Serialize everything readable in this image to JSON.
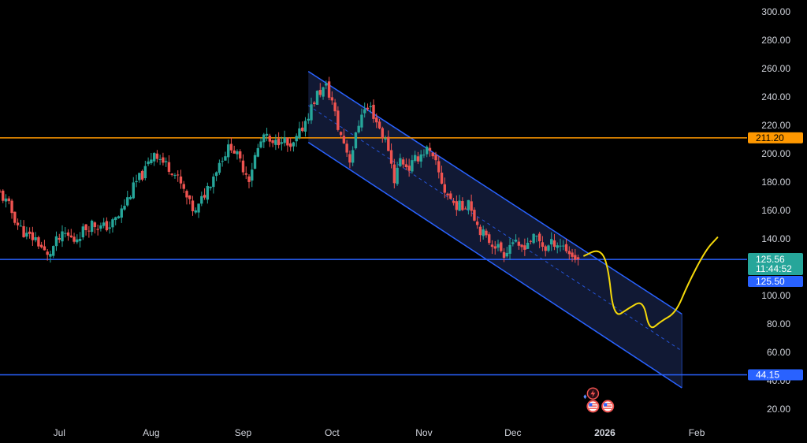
{
  "chart_data": {
    "type": "candlestick",
    "colors": {
      "background": "#000000",
      "up": "#26a69a",
      "down": "#ef5350",
      "channel": "#2962ff",
      "channel_fill": "#131c3a",
      "resistance": "#ff9800",
      "support": "#2962ff",
      "projection": "#f5d90a",
      "axis_text": "#d1d4dc"
    },
    "y_axis": {
      "min": 20,
      "max": 300,
      "ticks": [
        "300.00",
        "280.00",
        "260.00",
        "240.00",
        "220.00",
        "200.00",
        "180.00",
        "160.00",
        "140.00",
        "120.00",
        "100.00",
        "80.00",
        "60.00",
        "40.00",
        "20.00"
      ],
      "tick_values": [
        300,
        280,
        260,
        240,
        220,
        200,
        180,
        160,
        140,
        120,
        100,
        80,
        60,
        40,
        20
      ]
    },
    "x_axis": {
      "labels": [
        {
          "text": "Jul",
          "date": "2025-07-01",
          "bold": false
        },
        {
          "text": "Aug",
          "date": "2025-08-01",
          "bold": false
        },
        {
          "text": "Sep",
          "date": "2025-09-01",
          "bold": false
        },
        {
          "text": "Oct",
          "date": "2025-10-01",
          "bold": false
        },
        {
          "text": "Nov",
          "date": "2025-11-01",
          "bold": false
        },
        {
          "text": "Dec",
          "date": "2025-12-01",
          "bold": false
        },
        {
          "text": "2026",
          "date": "2026-01-01",
          "bold": true
        },
        {
          "text": "Feb",
          "date": "2026-02-01",
          "bold": false
        }
      ],
      "start": "2025-06-11",
      "end": "2026-02-18"
    },
    "series_close": [
      [
        "2025-06-11",
        172
      ],
      [
        "2025-06-14",
        163
      ],
      [
        "2025-06-17",
        150
      ],
      [
        "2025-06-20",
        142
      ],
      [
        "2025-06-23",
        140
      ],
      [
        "2025-06-25",
        134
      ],
      [
        "2025-06-27",
        127
      ],
      [
        "2025-06-30",
        138
      ],
      [
        "2025-07-03",
        143
      ],
      [
        "2025-07-06",
        139
      ],
      [
        "2025-07-09",
        146
      ],
      [
        "2025-07-12",
        151
      ],
      [
        "2025-07-15",
        148
      ],
      [
        "2025-07-18",
        149
      ],
      [
        "2025-07-21",
        156
      ],
      [
        "2025-07-24",
        168
      ],
      [
        "2025-07-27",
        180
      ],
      [
        "2025-07-30",
        188
      ],
      [
        "2025-08-02",
        202
      ],
      [
        "2025-08-05",
        194
      ],
      [
        "2025-08-08",
        189
      ],
      [
        "2025-08-11",
        178
      ],
      [
        "2025-08-14",
        164
      ],
      [
        "2025-08-16",
        158
      ],
      [
        "2025-08-19",
        172
      ],
      [
        "2025-08-22",
        185
      ],
      [
        "2025-08-25",
        198
      ],
      [
        "2025-08-28",
        206
      ],
      [
        "2025-08-31",
        194
      ],
      [
        "2025-09-03",
        183
      ],
      [
        "2025-09-05",
        198
      ],
      [
        "2025-09-08",
        213
      ],
      [
        "2025-09-11",
        205
      ],
      [
        "2025-09-14",
        212
      ],
      [
        "2025-09-17",
        202
      ],
      [
        "2025-09-20",
        214
      ],
      [
        "2025-09-23",
        228
      ],
      [
        "2025-09-26",
        242
      ],
      [
        "2025-09-29",
        247
      ],
      [
        "2025-10-01",
        237
      ],
      [
        "2025-10-03",
        218
      ],
      [
        "2025-10-05",
        208
      ],
      [
        "2025-10-07",
        196
      ],
      [
        "2025-10-09",
        212
      ],
      [
        "2025-10-11",
        230
      ],
      [
        "2025-10-14",
        232
      ],
      [
        "2025-10-17",
        218
      ],
      [
        "2025-10-20",
        204
      ],
      [
        "2025-10-22",
        182
      ],
      [
        "2025-10-24",
        196
      ],
      [
        "2025-10-27",
        190
      ],
      [
        "2025-10-30",
        198
      ],
      [
        "2025-11-02",
        203
      ],
      [
        "2025-11-05",
        192
      ],
      [
        "2025-11-08",
        174
      ],
      [
        "2025-11-11",
        165
      ],
      [
        "2025-11-14",
        162
      ],
      [
        "2025-11-16",
        168
      ],
      [
        "2025-11-19",
        150
      ],
      [
        "2025-11-22",
        140
      ],
      [
        "2025-11-25",
        136
      ],
      [
        "2025-11-28",
        130
      ],
      [
        "2025-12-01",
        139
      ],
      [
        "2025-12-03",
        132
      ],
      [
        "2025-12-06",
        138
      ],
      [
        "2025-12-09",
        141
      ],
      [
        "2025-12-12",
        133
      ],
      [
        "2025-12-15",
        138
      ],
      [
        "2025-12-18",
        135
      ],
      [
        "2025-12-21",
        128
      ],
      [
        "2025-12-23",
        125.56
      ]
    ],
    "levels": [
      {
        "name": "resistance",
        "value": 211.2,
        "label": "211.20",
        "color": "#ff9800",
        "text_color": "dark"
      },
      {
        "name": "current-support",
        "value": 125.5,
        "label": "125.50",
        "color": "#2962ff",
        "text_color": "light"
      },
      {
        "name": "lower-support",
        "value": 44.15,
        "label": "44.15",
        "color": "#2962ff",
        "text_color": "light"
      }
    ],
    "last_price": {
      "value": 125.56,
      "label": "125.56",
      "countdown": "11:44:52",
      "color": "#26a69a"
    },
    "channel": {
      "upper": [
        [
          "2025-09-23",
          258
        ],
        [
          "2026-01-27",
          87
        ]
      ],
      "middle": [
        [
          "2025-09-23",
          234
        ],
        [
          "2026-01-27",
          61
        ]
      ],
      "lower": [
        [
          "2025-09-23",
          208
        ],
        [
          "2026-01-27",
          35
        ]
      ]
    },
    "projection": [
      [
        "2025-12-25",
        128
      ],
      [
        "2025-12-30",
        133
      ],
      [
        "2026-01-02",
        123
      ],
      [
        "2026-01-04",
        84
      ],
      [
        "2026-01-09",
        91
      ],
      [
        "2026-01-14",
        97
      ],
      [
        "2026-01-16",
        75
      ],
      [
        "2026-01-20",
        82
      ],
      [
        "2026-01-25",
        88
      ],
      [
        "2026-01-29",
        108
      ],
      [
        "2026-02-04",
        132
      ],
      [
        "2026-02-08",
        141
      ]
    ],
    "event_icons": [
      {
        "name": "lightning-event-icon",
        "date": "2025-12-28",
        "value": 31
      },
      {
        "name": "us-flag-event-icon",
        "date": "2025-12-28",
        "value": 22
      },
      {
        "name": "us-flag-event-icon-2",
        "date": "2026-01-02",
        "value": 22
      }
    ]
  }
}
